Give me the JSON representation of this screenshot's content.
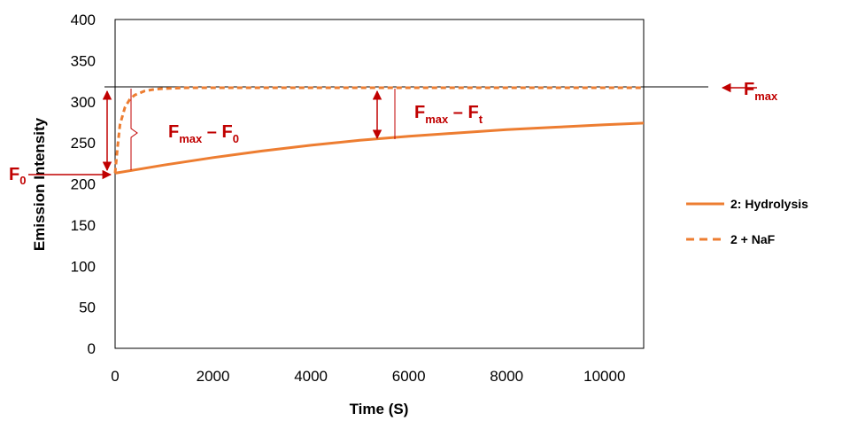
{
  "chart_data": {
    "type": "line",
    "title": "",
    "xlabel": "Time (S)",
    "ylabel": "Emission Intensity",
    "xlim": [
      0,
      10800
    ],
    "ylim": [
      0,
      400
    ],
    "x_ticks": [
      "0",
      "2000",
      "4000",
      "6000",
      "8000",
      "10000"
    ],
    "y_ticks": [
      "0",
      "50",
      "100",
      "150",
      "200",
      "250",
      "300",
      "350",
      "400"
    ],
    "grid": false,
    "legend_position": "right",
    "series": [
      {
        "name": "2: Hydrolysis",
        "style": "solid",
        "color": "#ed7d31",
        "x": [
          0,
          500,
          1000,
          2000,
          3000,
          4000,
          5000,
          6000,
          7000,
          8000,
          9000,
          10000,
          10800
        ],
        "y": [
          213,
          218,
          223,
          232,
          240,
          247,
          253,
          258,
          262,
          266,
          269,
          272,
          274
        ]
      },
      {
        "name": "2 + NaF",
        "style": "dashed",
        "color": "#ed7d31",
        "x": [
          0,
          50,
          100,
          200,
          300,
          400,
          600,
          800,
          1000,
          1500,
          2000,
          4000,
          6000,
          8000,
          10000,
          10800
        ],
        "y": [
          213,
          245,
          272,
          293,
          303,
          308,
          313,
          315,
          316,
          317,
          317,
          317,
          317,
          317,
          317,
          317
        ]
      }
    ],
    "reference_line": {
      "y": 318
    },
    "annotations": {
      "f_max": {
        "main": "F",
        "sub": "max"
      },
      "f_zero": {
        "main": "F",
        "sub": "0"
      },
      "fmax_minus_f0": {
        "main1": "F",
        "sub1": "max",
        "op": " – ",
        "main2": "F",
        "sub2": "0"
      },
      "fmax_minus_ft": {
        "main1": "F",
        "sub1": "max",
        "op": " – ",
        "main2": "F",
        "sub2": "t"
      },
      "color": "#c00000"
    }
  }
}
